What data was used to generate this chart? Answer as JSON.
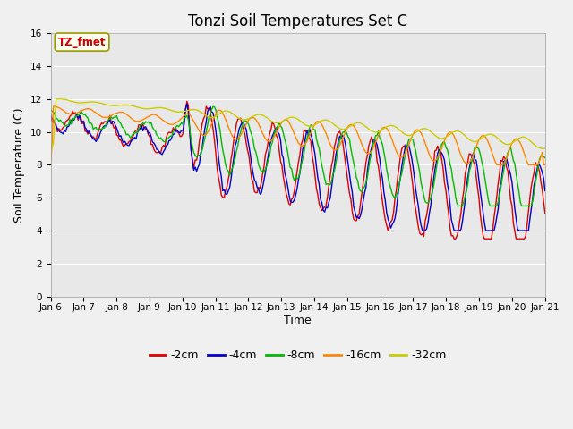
{
  "title": "Tonzi Soil Temperatures Set C",
  "xlabel": "Time",
  "ylabel": "Soil Temperature (C)",
  "annotation": "TZ_fmet",
  "ylim": [
    0,
    16
  ],
  "yticks": [
    0,
    2,
    4,
    6,
    8,
    10,
    12,
    14,
    16
  ],
  "xtick_labels": [
    "Jan 6",
    "Jan 7",
    "Jan 8",
    "Jan 9",
    "Jan 10",
    "Jan 11",
    "Jan 12",
    "Jan 13",
    "Jan 14",
    "Jan 15",
    "Jan 16",
    "Jan 17",
    "Jan 18",
    "Jan 19",
    "Jan 20",
    "Jan 21"
  ],
  "series_colors": [
    "#dd0000",
    "#0000cc",
    "#00bb00",
    "#ff8800",
    "#cccc00"
  ],
  "series_labels": [
    "-2cm",
    "-4cm",
    "-8cm",
    "-16cm",
    "-32cm"
  ],
  "fig_bg_color": "#f0f0f0",
  "plot_bg_color": "#e8e8e8",
  "grid_color": "#ffffff",
  "title_fontsize": 12,
  "axis_label_fontsize": 9,
  "tick_fontsize": 7.5,
  "legend_fontsize": 9,
  "n_days": 15,
  "pts_per_day": 24
}
